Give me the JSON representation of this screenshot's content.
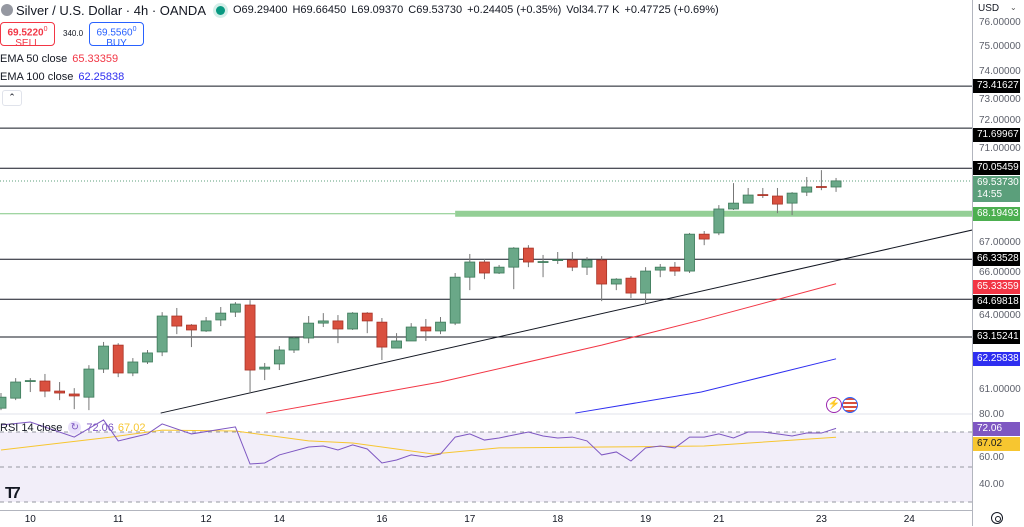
{
  "header": {
    "title": "Silver / U.S. Dollar · 4h · OANDA",
    "open": "O69.29400",
    "high": "H69.66450",
    "low": "L69.09370",
    "close": "C69.53730",
    "change": "+0.24405 (+0.35%)",
    "volume": "Vol34.77 K",
    "vol_change": "+0.47725 (+0.69%)"
  },
  "trade": {
    "sell_price": "69.5220",
    "sell_sup": "0",
    "sell_label": "SELL",
    "spread": "340.0",
    "buy_price": "69.5560",
    "buy_sup": "0",
    "buy_label": "BUY"
  },
  "indicators": {
    "ema50_label": "EMA 50 close",
    "ema50_value": "65.33359",
    "ema100_label": "EMA 100 close",
    "ema100_value": "62.25838",
    "rsi_label": "RSI 14 close",
    "rsi_value": "72.06",
    "rsi_ma_value": "67.02"
  },
  "axis": {
    "currency": "USD",
    "price_ticks": [
      "76.00000",
      "75.00000",
      "74.00000",
      "73.00000",
      "72.00000",
      "71.00000",
      "67.00000",
      "66.00000",
      "64.00000",
      "61.00000"
    ],
    "rsi_ticks": [
      "80.00",
      "60.00",
      "40.00"
    ],
    "time_ticks": [
      {
        "label": "10",
        "index": 2
      },
      {
        "label": "11",
        "index": 8
      },
      {
        "label": "12",
        "index": 14
      },
      {
        "label": "14",
        "index": 19
      },
      {
        "label": "16",
        "index": 26
      },
      {
        "label": "17",
        "index": 32
      },
      {
        "label": "18",
        "index": 38
      },
      {
        "label": "19",
        "index": 44
      },
      {
        "label": "21",
        "index": 49
      },
      {
        "label": "23",
        "index": 56
      },
      {
        "label": "24",
        "index": 62
      }
    ]
  },
  "levels": [
    {
      "label": "73.41627",
      "price": 73.41627
    },
    {
      "label": "71.69967",
      "price": 71.69967
    },
    {
      "label": "70.05459",
      "price": 70.05459
    },
    {
      "label": "66.33528",
      "price": 66.33528
    },
    {
      "label": "64.69818",
      "price": 64.69818
    },
    {
      "label": "63.15241",
      "price": 63.15241
    }
  ],
  "support_zone": {
    "label": "68.19493",
    "price": 68.19493,
    "start_index": 31
  },
  "current_price": {
    "label": "69.53730",
    "countdown": "14:55",
    "price": 69.5373
  },
  "ema_tags": {
    "ema50": "65.33359",
    "ema100": "62.25838"
  },
  "colors": {
    "up": "#6aa888",
    "down": "#d9503f",
    "ema50": "#f23645",
    "ema100": "#2e2ef0",
    "rsi": "#7e57c2",
    "rsi_ma": "#f7c630",
    "zone": "#81c784",
    "level": "#131722",
    "current": "#5b9f7b"
  },
  "chart_data": {
    "type": "candlestick",
    "y_range": [
      60,
      76
    ],
    "candles": [
      [
        60.24,
        60.86,
        60.16,
        60.69
      ],
      [
        60.65,
        61.47,
        60.57,
        61.31
      ],
      [
        61.35,
        61.47,
        60.9,
        61.37
      ],
      [
        61.35,
        61.64,
        60.69,
        60.94
      ],
      [
        60.94,
        61.31,
        60.57,
        60.86
      ],
      [
        60.82,
        61.06,
        60.2,
        60.74
      ],
      [
        60.69,
        62.0,
        60.16,
        61.84
      ],
      [
        61.84,
        62.95,
        61.68,
        62.78
      ],
      [
        62.82,
        62.9,
        61.51,
        61.68
      ],
      [
        61.68,
        62.29,
        61.55,
        62.13
      ],
      [
        62.13,
        62.62,
        62.05,
        62.5
      ],
      [
        62.54,
        64.17,
        62.37,
        64.01
      ],
      [
        64.01,
        64.34,
        63.27,
        63.6
      ],
      [
        63.64,
        63.68,
        62.74,
        63.44
      ],
      [
        63.4,
        63.97,
        63.36,
        63.81
      ],
      [
        63.85,
        64.38,
        63.6,
        64.13
      ],
      [
        64.17,
        64.58,
        63.97,
        64.5
      ],
      [
        64.46,
        64.66,
        60.86,
        61.8
      ],
      [
        61.84,
        62.09,
        61.39,
        61.92
      ],
      [
        62.05,
        62.78,
        61.8,
        62.62
      ],
      [
        62.62,
        63.19,
        62.5,
        63.11
      ],
      [
        63.11,
        64.01,
        62.9,
        63.72
      ],
      [
        63.72,
        64.13,
        63.56,
        63.81
      ],
      [
        63.81,
        64.05,
        62.9,
        63.48
      ],
      [
        63.48,
        64.17,
        63.44,
        64.13
      ],
      [
        64.13,
        64.17,
        63.31,
        63.81
      ],
      [
        63.76,
        63.93,
        62.21,
        62.74
      ],
      [
        62.7,
        63.31,
        62.7,
        62.99
      ],
      [
        62.99,
        63.72,
        62.99,
        63.56
      ],
      [
        63.56,
        63.89,
        62.99,
        63.4
      ],
      [
        63.4,
        63.97,
        63.27,
        63.76
      ],
      [
        63.72,
        65.77,
        63.64,
        65.6
      ],
      [
        65.6,
        66.55,
        65.07,
        66.22
      ],
      [
        66.22,
        66.34,
        65.52,
        65.77
      ],
      [
        65.77,
        66.1,
        65.73,
        66.01
      ],
      [
        66.01,
        66.83,
        65.11,
        66.79
      ],
      [
        66.79,
        66.91,
        66.01,
        66.22
      ],
      [
        66.22,
        66.51,
        65.6,
        66.24
      ],
      [
        66.3,
        66.63,
        66.14,
        66.32
      ],
      [
        66.3,
        66.63,
        65.85,
        66.01
      ],
      [
        66.01,
        66.42,
        65.69,
        66.3
      ],
      [
        66.3,
        66.46,
        64.62,
        65.32
      ],
      [
        65.32,
        65.56,
        65.07,
        65.52
      ],
      [
        65.56,
        65.65,
        64.75,
        64.95
      ],
      [
        64.95,
        66.01,
        64.5,
        65.85
      ],
      [
        65.89,
        66.14,
        65.6,
        66.01
      ],
      [
        66.01,
        66.22,
        65.65,
        65.85
      ],
      [
        65.85,
        67.41,
        65.77,
        67.36
      ],
      [
        67.36,
        67.49,
        66.91,
        67.16
      ],
      [
        67.41,
        68.55,
        67.32,
        68.39
      ],
      [
        68.39,
        69.45,
        68.35,
        68.63
      ],
      [
        68.63,
        69.25,
        68.63,
        68.96
      ],
      [
        68.98,
        69.25,
        68.84,
        68.94
      ],
      [
        68.92,
        69.25,
        68.22,
        68.59
      ],
      [
        68.63,
        69.08,
        68.14,
        69.04
      ],
      [
        69.08,
        69.7,
        68.92,
        69.29
      ],
      [
        69.31,
        69.98,
        69.16,
        69.29
      ],
      [
        69.29,
        69.66,
        69.09,
        69.54
      ]
    ],
    "trendline": [
      [
        10.9,
        60.04
      ],
      [
        66.3,
        67.53
      ]
    ],
    "ema50": [
      [
        18.1,
        60.04
      ],
      [
        30,
        61.31
      ],
      [
        41,
        62.82
      ],
      [
        47.8,
        63.85
      ],
      [
        57,
        65.33
      ]
    ],
    "ema100": [
      [
        39.2,
        60.04
      ],
      [
        47.8,
        60.9
      ],
      [
        57,
        62.26
      ]
    ],
    "rsi": {
      "range": [
        25,
        85
      ],
      "bands": [
        70,
        50,
        30
      ],
      "line": [
        [
          0,
          74
        ],
        [
          2,
          75.7
        ],
        [
          5,
          67.1
        ],
        [
          7,
          76.9
        ],
        [
          8,
          64.9
        ],
        [
          10,
          68.9
        ],
        [
          11,
          74.6
        ],
        [
          13,
          68.9
        ],
        [
          16,
          72.9
        ],
        [
          17,
          51.7
        ],
        [
          18,
          52.3
        ],
        [
          19,
          56.9
        ],
        [
          21,
          61.4
        ],
        [
          22,
          62.0
        ],
        [
          23,
          59.7
        ],
        [
          24,
          62.6
        ],
        [
          25,
          60.3
        ],
        [
          26,
          52.3
        ],
        [
          27,
          54.0
        ],
        [
          28,
          56.9
        ],
        [
          29,
          55.7
        ],
        [
          30,
          57.4
        ],
        [
          31,
          67.1
        ],
        [
          32,
          68.9
        ],
        [
          33,
          65.4
        ],
        [
          34,
          66.6
        ],
        [
          35,
          68.3
        ],
        [
          36,
          70.0
        ],
        [
          37,
          67.7
        ],
        [
          38,
          66.6
        ],
        [
          39,
          67.1
        ],
        [
          40,
          64.9
        ],
        [
          41,
          56.9
        ],
        [
          42,
          58.6
        ],
        [
          43,
          53.4
        ],
        [
          44,
          60.9
        ],
        [
          45,
          62.0
        ],
        [
          46,
          60.9
        ],
        [
          47,
          67.1
        ],
        [
          48,
          67.1
        ],
        [
          49,
          68.9
        ],
        [
          50,
          66.6
        ],
        [
          51,
          70.0
        ],
        [
          52,
          70.0
        ],
        [
          53,
          68.9
        ],
        [
          54,
          67.7
        ],
        [
          55,
          69.4
        ],
        [
          56,
          69.4
        ],
        [
          57,
          72.06
        ]
      ],
      "ma": [
        [
          0,
          59.7
        ],
        [
          7.5,
          67.1
        ],
        [
          11,
          71.1
        ],
        [
          16,
          70.6
        ],
        [
          21,
          64.9
        ],
        [
          24,
          63.7
        ],
        [
          29.5,
          57.4
        ],
        [
          34,
          60.9
        ],
        [
          41,
          61.4
        ],
        [
          48,
          62.0
        ],
        [
          57,
          67.02
        ]
      ]
    }
  }
}
